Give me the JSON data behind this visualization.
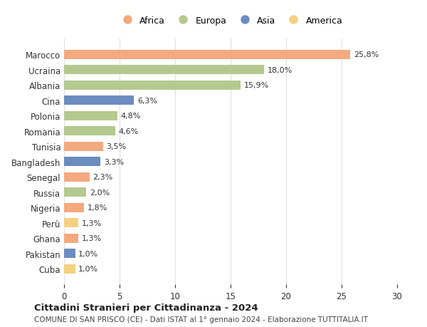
{
  "countries": [
    "Marocco",
    "Ucraina",
    "Albania",
    "Cina",
    "Polonia",
    "Romania",
    "Tunisia",
    "Bangladesh",
    "Senegal",
    "Russia",
    "Nigeria",
    "Perù",
    "Ghana",
    "Pakistan",
    "Cuba"
  ],
  "values": [
    25.8,
    18.0,
    15.9,
    6.3,
    4.8,
    4.6,
    3.5,
    3.3,
    2.3,
    2.0,
    1.8,
    1.3,
    1.3,
    1.0,
    1.0
  ],
  "labels": [
    "25,8%",
    "18,0%",
    "15,9%",
    "6,3%",
    "4,8%",
    "4,6%",
    "3,5%",
    "3,3%",
    "2,3%",
    "2,0%",
    "1,8%",
    "1,3%",
    "1,3%",
    "1,0%",
    "1,0%"
  ],
  "continents": [
    "Africa",
    "Europa",
    "Europa",
    "Asia",
    "Europa",
    "Europa",
    "Africa",
    "Asia",
    "Africa",
    "Europa",
    "Africa",
    "America",
    "Africa",
    "Asia",
    "America"
  ],
  "colors": {
    "Africa": "#F4A97F",
    "Europa": "#B5C98E",
    "Asia": "#6B8CBE",
    "America": "#F5D080"
  },
  "legend_order": [
    "Africa",
    "Europa",
    "Asia",
    "America"
  ],
  "title": "Cittadini Stranieri per Cittadinanza - 2024",
  "subtitle": "COMUNE DI SAN PRISCO (CE) - Dati ISTAT al 1° gennaio 2024 - Elaborazione TUTTITALIA.IT",
  "xlim": [
    0,
    30
  ],
  "xticks": [
    0,
    5,
    10,
    15,
    20,
    25,
    30
  ],
  "background_color": "#ffffff",
  "grid_color": "#e0e0e0"
}
